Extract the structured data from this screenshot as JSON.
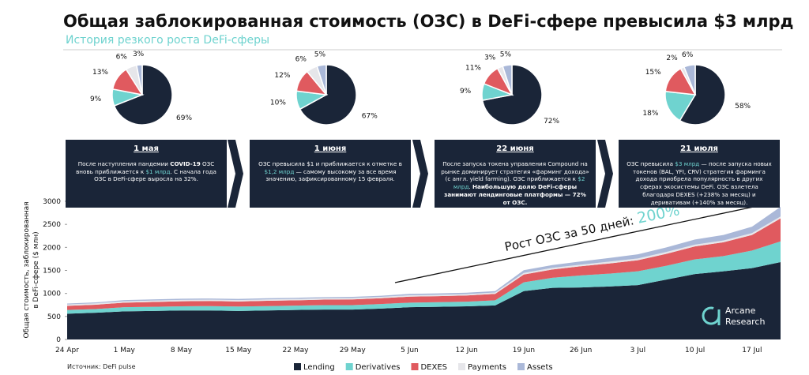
{
  "title": "Общая заблокированная стоимость (ОЗС) в DeFi-сфере превысила $3 млрд",
  "subtitle": "История резкого роста DeFi-сферы",
  "panels": [
    {
      "date": "1 мая",
      "runs": [
        {
          "text": "После наступления пандемии "
        },
        {
          "text": "COVID-19",
          "em": "bold"
        },
        {
          "text": " ОЗС вновь приближается к "
        },
        {
          "text": "$1 млрд",
          "em": "accent"
        },
        {
          "text": ". С начала года ОЗС в DeFi-сфере выросла на 32%."
        }
      ]
    },
    {
      "date": "1 июня",
      "runs": [
        {
          "text": "ОЗС превысила $1 и приближается к отметке в "
        },
        {
          "text": "$1,2 млрд",
          "em": "accent"
        },
        {
          "text": " — самому высокому за все время значению, зафиксированному 15 февраля."
        }
      ]
    },
    {
      "date": "22 июня",
      "runs": [
        {
          "text": "После запуска токена управления Compound на рынке доминирует стратегия «фарминг дохода» (с англ. yield farming). ОЗС приближается к "
        },
        {
          "text": "$2 млрд",
          "em": "accent"
        },
        {
          "text": ". "
        },
        {
          "text": "Наибольшую долю DeFi-сферы занимают лендинговые платформы — 72% от ОЗС.",
          "em": "bold"
        }
      ]
    },
    {
      "date": "21 июля",
      "runs": [
        {
          "text": "ОЗС превысила "
        },
        {
          "text": "$3 млрд",
          "em": "accent"
        },
        {
          "text": " — после запуска новых токенов (BAL, YFI, CRV) стратегия фарминга дохода приобрела популярность в других сферах экосистемы DeFi. ОЗС взлетела благодаря DEXES (+238% за месяц) и деривативам (+140% за месяц)."
        }
      ]
    }
  ],
  "chart_data": [
    {
      "type": "pie",
      "values": [
        69,
        9,
        13,
        6,
        3
      ],
      "value_labels": [
        "69%",
        "9%",
        "13%",
        "6%",
        "3%"
      ],
      "colors": [
        "#1a2538",
        "#6fd3cf",
        "#e05a5f",
        "#e6e6ea",
        "#aab8d8"
      ]
    },
    {
      "type": "pie",
      "values": [
        67,
        10,
        12,
        6,
        5
      ],
      "value_labels": [
        "67%",
        "10%",
        "12%",
        "6%",
        "5%"
      ],
      "colors": [
        "#1a2538",
        "#6fd3cf",
        "#e05a5f",
        "#e6e6ea",
        "#aab8d8"
      ]
    },
    {
      "type": "pie",
      "values": [
        72,
        9,
        11,
        3,
        5
      ],
      "value_labels": [
        "72%",
        "9%",
        "11%",
        "3%",
        "5%"
      ],
      "colors": [
        "#1a2538",
        "#6fd3cf",
        "#e05a5f",
        "#e6e6ea",
        "#aab8d8"
      ]
    },
    {
      "type": "pie",
      "values": [
        58,
        18,
        15,
        2,
        6
      ],
      "value_labels": [
        "58%",
        "18%",
        "15%",
        "2%",
        "6%"
      ],
      "colors": [
        "#1a2538",
        "#6fd3cf",
        "#e05a5f",
        "#e6e6ea",
        "#aab8d8"
      ]
    },
    {
      "type": "area",
      "stacked": true,
      "y_label": [
        "Общая стоимость, заблокированная",
        "в DeFi-сфере ($ млн)"
      ],
      "categories": [
        "24 Apr",
        null,
        "1 May",
        null,
        "8 May",
        null,
        "15 May",
        null,
        "22 May",
        null,
        "29 May",
        null,
        "5 Jun",
        null,
        "12 Jun",
        null,
        "19 Jun",
        null,
        "26 Jun",
        null,
        "3 Jul",
        null,
        "10 Jul",
        null,
        "17 Jul",
        null
      ],
      "series": [
        {
          "name": "Lending",
          "color": "#1a2538",
          "values": [
            560,
            580,
            610,
            620,
            630,
            630,
            620,
            630,
            640,
            650,
            650,
            670,
            700,
            710,
            720,
            740,
            1050,
            1120,
            1130,
            1150,
            1180,
            1300,
            1420,
            1480,
            1550,
            1680
          ]
        },
        {
          "name": "Derivatives",
          "color": "#6fd3cf",
          "values": [
            80,
            80,
            90,
            90,
            90,
            95,
            95,
            95,
            95,
            95,
            95,
            100,
            100,
            100,
            100,
            110,
            190,
            220,
            260,
            280,
            300,
            300,
            320,
            330,
            380,
            450
          ]
        },
        {
          "name": "DEXES",
          "color": "#e05a5f",
          "values": [
            90,
            95,
            100,
            105,
            110,
            110,
            110,
            115,
            115,
            120,
            125,
            125,
            130,
            130,
            135,
            140,
            170,
            180,
            200,
            220,
            240,
            260,
            280,
            300,
            340,
            500
          ]
        },
        {
          "name": "Payments",
          "color": "#e6e6ea",
          "values": [
            30,
            30,
            30,
            30,
            30,
            30,
            30,
            30,
            30,
            30,
            30,
            30,
            30,
            30,
            30,
            30,
            35,
            35,
            35,
            40,
            40,
            40,
            40,
            40,
            40,
            40
          ]
        },
        {
          "name": "Assets",
          "color": "#aab8d8",
          "values": [
            20,
            20,
            25,
            25,
            25,
            25,
            25,
            25,
            25,
            25,
            25,
            25,
            30,
            30,
            30,
            30,
            60,
            60,
            70,
            80,
            90,
            100,
            110,
            120,
            140,
            210
          ]
        }
      ],
      "ylim": [
        0,
        3000
      ],
      "yticks": [
        0,
        500,
        1000,
        1500,
        2000,
        2500,
        3000
      ],
      "annotation": {
        "text": "Рост ОЗС за 50 дней:",
        "value_text": "200%"
      },
      "legend": "bottom"
    }
  ],
  "source": "Источник: DeFi pulse",
  "logo": [
    "Arcane",
    "Research"
  ]
}
